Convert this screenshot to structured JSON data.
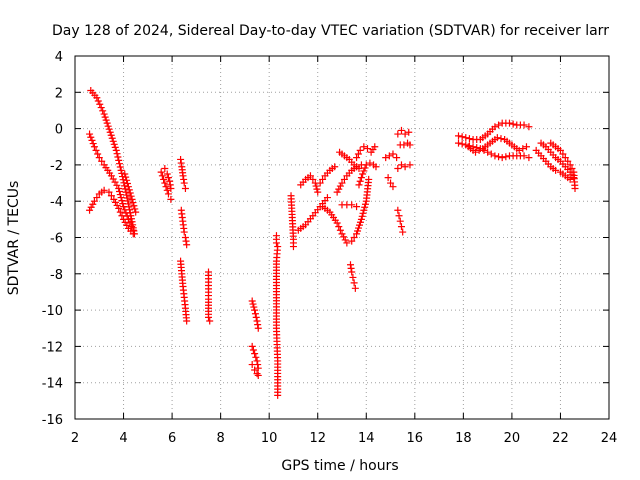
{
  "chart_data": {
    "type": "scatter",
    "title": "Day 128 of 2024, Sidereal Day-to-day VTEC variation (SDTVAR) for receiver larr",
    "xlabel": "GPS time / hours",
    "ylabel": "SDTVAR / TECUs",
    "xlim": [
      2,
      24
    ],
    "ylim": [
      -16,
      4
    ],
    "xticks": [
      "2",
      "4",
      "6",
      "8",
      "10",
      "12",
      "14",
      "16",
      "18",
      "20",
      "22",
      "24"
    ],
    "yticks": [
      "4",
      "2",
      "0",
      "-2",
      "-4",
      "-6",
      "-8",
      "-10",
      "-12",
      "-14",
      "-16"
    ],
    "grid": true,
    "marker": "+",
    "color": "#ff0000",
    "series_segments": [
      {
        "x": [
          2.65,
          2.9,
          3.2,
          3.45,
          3.7,
          3.9,
          4.1,
          4.3,
          4.45
        ],
        "y": [
          2.1,
          1.7,
          0.8,
          -0.2,
          -1.2,
          -2.3,
          -3.5,
          -4.8,
          -5.8
        ]
      },
      {
        "x": [
          2.6,
          2.8,
          3.0,
          3.2,
          3.5,
          3.8,
          4.0,
          4.2,
          4.4
        ],
        "y": [
          -0.3,
          -1.0,
          -1.6,
          -2.0,
          -2.6,
          -3.3,
          -4.3,
          -5.0,
          -5.6
        ]
      },
      {
        "x": [
          2.6,
          2.8,
          3.0,
          3.2,
          3.4,
          3.6,
          3.8,
          4.0,
          4.2,
          4.4
        ],
        "y": [
          -4.5,
          -4.0,
          -3.6,
          -3.4,
          -3.5,
          -3.9,
          -4.4,
          -5.0,
          -5.5,
          -5.8
        ]
      },
      {
        "x": [
          4.05,
          4.2,
          4.35,
          4.5
        ],
        "y": [
          -2.5,
          -3.2,
          -3.9,
          -4.6
        ]
      },
      {
        "x": [
          5.55,
          5.65,
          5.75,
          5.85,
          5.95
        ],
        "y": [
          -2.4,
          -2.8,
          -3.2,
          -3.6,
          -3.9
        ]
      },
      {
        "x": [
          5.7,
          5.8,
          5.9,
          5.95
        ],
        "y": [
          -2.2,
          -2.5,
          -2.9,
          -3.3
        ]
      },
      {
        "x": [
          6.35,
          6.4,
          6.45,
          6.5,
          6.55
        ],
        "y": [
          -1.7,
          -2.1,
          -2.6,
          -3.0,
          -3.3
        ]
      },
      {
        "x": [
          6.38,
          6.42,
          6.46,
          6.5,
          6.55,
          6.6
        ],
        "y": [
          -4.5,
          -4.9,
          -5.3,
          -5.7,
          -6.0,
          -6.4
        ]
      },
      {
        "x": [
          6.35,
          6.4,
          6.45,
          6.5,
          6.55,
          6.6
        ],
        "y": [
          -7.3,
          -8.0,
          -8.7,
          -9.3,
          -9.9,
          -10.6
        ]
      },
      {
        "x": [
          7.5,
          7.5,
          7.5,
          7.5,
          7.55
        ],
        "y": [
          -7.9,
          -9.2,
          -9.4,
          -10.4,
          -10.6
        ]
      },
      {
        "x": [
          9.3,
          9.4,
          9.5,
          9.55
        ],
        "y": [
          -9.5,
          -10.0,
          -10.6,
          -11.0
        ]
      },
      {
        "x": [
          9.3,
          9.4,
          9.5,
          9.55
        ],
        "y": [
          -12.0,
          -12.4,
          -12.8,
          -13.2
        ]
      },
      {
        "x": [
          9.3,
          9.4,
          9.5,
          9.55
        ],
        "y": [
          -13.0,
          -13.3,
          -13.5,
          -13.6
        ]
      },
      {
        "x": [
          10.3,
          10.3,
          10.35,
          10.3,
          10.3,
          10.35,
          10.35
        ],
        "y": [
          -5.9,
          -6.3,
          -6.5,
          -7.3,
          -11.0,
          -12.8,
          -14.7
        ]
      },
      {
        "x": [
          10.9,
          11.0,
          11.0
        ],
        "y": [
          -3.7,
          -6.1,
          -6.5
        ]
      },
      {
        "x": [
          11.2,
          11.5,
          11.8,
          12.1,
          12.4
        ],
        "y": [
          -5.6,
          -5.3,
          -4.8,
          -4.3,
          -3.8
        ]
      },
      {
        "x": [
          11.3,
          11.5,
          11.7,
          11.9,
          12.0
        ],
        "y": [
          -3.1,
          -2.8,
          -2.6,
          -3.0,
          -3.5
        ]
      },
      {
        "x": [
          12.1,
          12.3,
          12.5,
          12.7
        ],
        "y": [
          -3.0,
          -2.6,
          -2.3,
          -2.1
        ]
      },
      {
        "x": [
          12.2,
          12.5,
          12.8,
          13.0,
          13.2,
          13.4,
          13.6,
          13.8,
          14.0,
          14.1
        ],
        "y": [
          -4.3,
          -4.6,
          -5.2,
          -5.8,
          -6.3,
          -6.2,
          -5.8,
          -5.0,
          -4.0,
          -2.8
        ]
      },
      {
        "x": [
          12.8,
          13.0,
          13.2,
          13.4,
          13.6,
          13.8
        ],
        "y": [
          -3.5,
          -3.0,
          -2.6,
          -2.3,
          -2.1,
          -2.0
        ]
      },
      {
        "x": [
          13.0,
          13.2,
          13.4,
          13.6
        ],
        "y": [
          -4.2,
          -4.2,
          -4.2,
          -4.3
        ]
      },
      {
        "x": [
          12.9,
          13.1,
          13.3,
          13.5,
          13.7
        ],
        "y": [
          -1.3,
          -1.5,
          -1.7,
          -2.0,
          -2.2
        ]
      },
      {
        "x": [
          13.35,
          13.4,
          13.45,
          13.5,
          13.55
        ],
        "y": [
          -7.5,
          -7.9,
          -8.2,
          -8.5,
          -8.8
        ]
      },
      {
        "x": [
          13.6,
          13.75,
          13.9,
          14.05,
          14.2,
          14.35
        ],
        "y": [
          -1.6,
          -1.2,
          -1.0,
          -1.1,
          -1.3,
          -1.0
        ]
      },
      {
        "x": [
          13.7,
          13.85,
          14.0,
          14.15,
          14.3,
          14.4
        ],
        "y": [
          -3.1,
          -2.5,
          -2.0,
          -1.9,
          -2.0,
          -2.1
        ]
      },
      {
        "x": [
          14.8,
          14.95,
          15.1,
          15.25
        ],
        "y": [
          -1.6,
          -1.5,
          -1.4,
          -1.6
        ]
      },
      {
        "x": [
          14.9,
          15.0,
          15.1
        ],
        "y": [
          -2.7,
          -3.0,
          -3.2
        ]
      },
      {
        "x": [
          15.3,
          15.35,
          15.4,
          15.45,
          15.5
        ],
        "y": [
          -4.5,
          -4.8,
          -5.1,
          -5.4,
          -5.7
        ]
      },
      {
        "x": [
          15.3,
          15.45,
          15.6,
          15.75
        ],
        "y": [
          -0.3,
          -0.1,
          -0.3,
          -0.2
        ]
      },
      {
        "x": [
          15.3,
          15.45,
          15.6,
          15.8
        ],
        "y": [
          -2.2,
          -2.0,
          -2.1,
          -2.0
        ]
      },
      {
        "x": [
          15.4,
          15.55,
          15.7,
          15.8
        ],
        "y": [
          -0.9,
          -0.9,
          -0.8,
          -0.9
        ]
      },
      {
        "x": [
          17.8,
          18.1,
          18.4,
          18.7,
          19.0,
          19.3,
          19.6,
          19.9,
          20.2,
          20.5,
          20.7
        ],
        "y": [
          -0.4,
          -0.5,
          -0.6,
          -0.6,
          -0.3,
          0.1,
          0.3,
          0.3,
          0.2,
          0.2,
          0.1
        ]
      },
      {
        "x": [
          17.8,
          18.1,
          18.4,
          18.7,
          19.0,
          19.3,
          19.6,
          19.9,
          20.2,
          20.5,
          20.7
        ],
        "y": [
          -0.8,
          -0.9,
          -1.0,
          -1.1,
          -1.3,
          -1.5,
          -1.6,
          -1.5,
          -1.5,
          -1.5,
          -1.6
        ]
      },
      {
        "x": [
          18.2,
          18.5,
          18.8,
          19.1,
          19.4,
          19.7,
          20.0,
          20.3,
          20.6
        ],
        "y": [
          -1.0,
          -1.3,
          -1.1,
          -0.8,
          -0.5,
          -0.6,
          -0.9,
          -1.2,
          -1.0
        ]
      },
      {
        "x": [
          21.0,
          21.2,
          21.4,
          21.6,
          21.8,
          22.0,
          22.2,
          22.4
        ],
        "y": [
          -1.2,
          -1.5,
          -1.8,
          -2.1,
          -2.3,
          -2.4,
          -2.6,
          -2.8
        ]
      },
      {
        "x": [
          21.2,
          21.4,
          21.6,
          21.8,
          22.0,
          22.2,
          22.4,
          22.55
        ],
        "y": [
          -0.8,
          -1.0,
          -1.3,
          -1.6,
          -1.8,
          -2.1,
          -2.4,
          -2.7
        ]
      },
      {
        "x": [
          21.6,
          21.8,
          22.0,
          22.2,
          22.4,
          22.55,
          22.6
        ],
        "y": [
          -0.8,
          -1.0,
          -1.2,
          -1.6,
          -2.0,
          -2.4,
          -3.3
        ]
      }
    ]
  }
}
